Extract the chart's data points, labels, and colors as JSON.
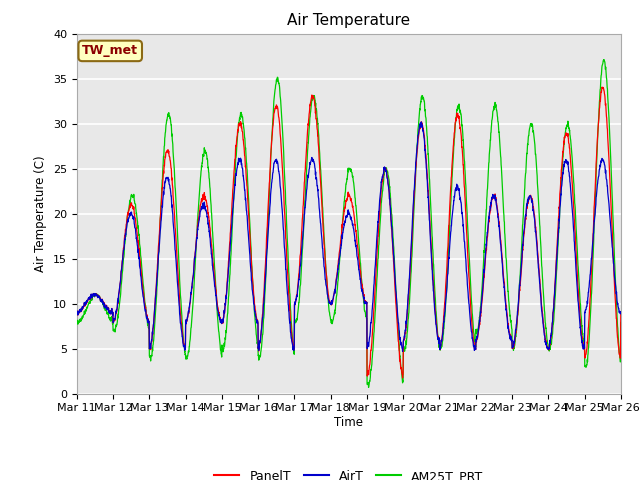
{
  "title": "Air Temperature",
  "ylabel": "Air Temperature (C)",
  "xlabel": "Time",
  "annotation_text": "TW_met",
  "annotation_text_color": "#8B0000",
  "annotation_box_facecolor": "#FFFFC0",
  "annotation_box_edgecolor": "#8B6914",
  "ylim": [
    0,
    40
  ],
  "bg_color": "#E8E8E8",
  "fig_color": "#FFFFFF",
  "grid_color": "#FFFFFF",
  "series_colors": {
    "PanelT": "#FF0000",
    "AirT": "#0000CC",
    "AM25T_PRT": "#00CC00"
  },
  "x_tick_labels": [
    "Mar 11",
    "Mar 12",
    "Mar 13",
    "Mar 14",
    "Mar 15",
    "Mar 16",
    "Mar 17",
    "Mar 18",
    "Mar 19",
    "Mar 20",
    "Mar 21",
    "Mar 22",
    "Mar 23",
    "Mar 24",
    "Mar 25",
    "Mar 26"
  ],
  "num_days": 16,
  "daily_maxs_panel": [
    11,
    21,
    27,
    22,
    30,
    32,
    33,
    22,
    25,
    30,
    31,
    22,
    22,
    29,
    34,
    10
  ],
  "daily_mins_panel": [
    9,
    8,
    5,
    8,
    8,
    5,
    10,
    10,
    2,
    6,
    5,
    6,
    5,
    5,
    4,
    9
  ],
  "daily_maxs_air": [
    11,
    20,
    24,
    21,
    26,
    26,
    26,
    20,
    25,
    30,
    23,
    22,
    22,
    26,
    26,
    10
  ],
  "daily_mins_air": [
    9,
    8,
    5,
    8,
    8,
    5,
    10,
    10,
    5,
    6,
    5,
    6,
    5,
    5,
    9,
    9
  ],
  "daily_maxs_am25": [
    11,
    22,
    31,
    27,
    31,
    35,
    33,
    25,
    25,
    33,
    32,
    32,
    30,
    30,
    37,
    10
  ],
  "daily_mins_am25": [
    8,
    7,
    4,
    4,
    5,
    4,
    8,
    8,
    1,
    5,
    5,
    7,
    5,
    5,
    3,
    8
  ]
}
